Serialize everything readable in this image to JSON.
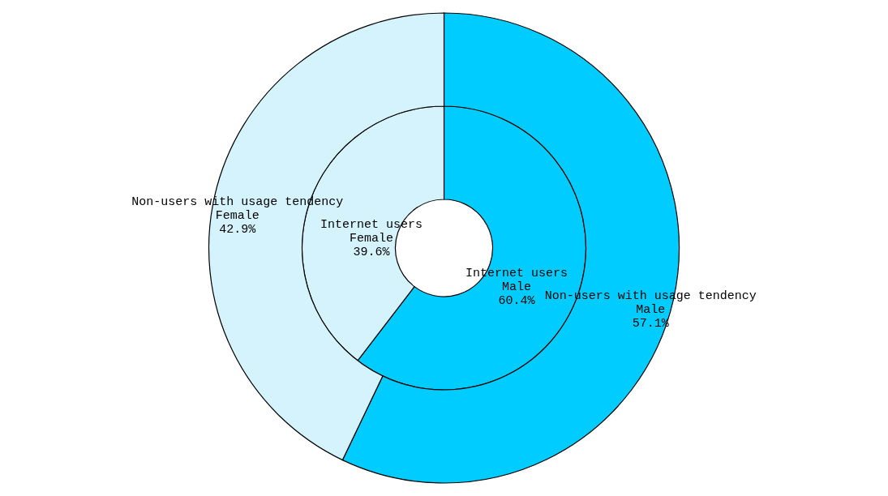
{
  "chart_data": {
    "type": "donut",
    "categories": [
      "Male",
      "Female"
    ],
    "colors": [
      "#00ccff",
      "#d4f3fc"
    ],
    "series": [
      {
        "name": "Internet users",
        "values": [
          60.4,
          39.6
        ],
        "value_labels": [
          "60.4%",
          "39.6%"
        ]
      },
      {
        "name": "Non-users with usage tendency",
        "values": [
          57.1,
          42.9
        ],
        "value_labels": [
          "57.1%",
          "42.9%"
        ]
      }
    ],
    "legend": false
  }
}
